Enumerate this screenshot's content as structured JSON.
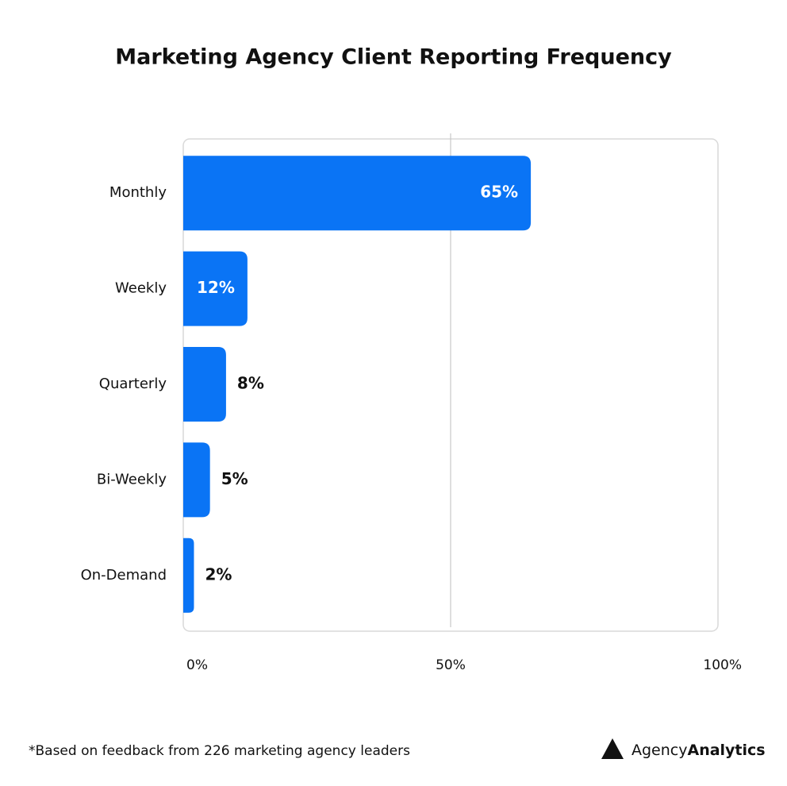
{
  "chart_data": {
    "type": "bar",
    "orientation": "horizontal",
    "title": "Marketing Agency Client Reporting Frequency",
    "categories": [
      "Monthly",
      "Weekly",
      "Quarterly",
      "Bi-Weekly",
      "On-Demand"
    ],
    "values": [
      65,
      12,
      8,
      5,
      2
    ],
    "value_labels": [
      "65%",
      "12%",
      "8%",
      "5%",
      "2%"
    ],
    "color": "#0a74f5",
    "xlim": [
      0,
      100
    ],
    "xticks": [
      {
        "value": 0,
        "label": "0%"
      },
      {
        "value": 50,
        "label": "50%"
      },
      {
        "value": 100,
        "label": "100%"
      }
    ],
    "footnote": "*Based on feedback from 226 marketing agency leaders",
    "brand": [
      "Agency",
      "Analytics"
    ]
  }
}
